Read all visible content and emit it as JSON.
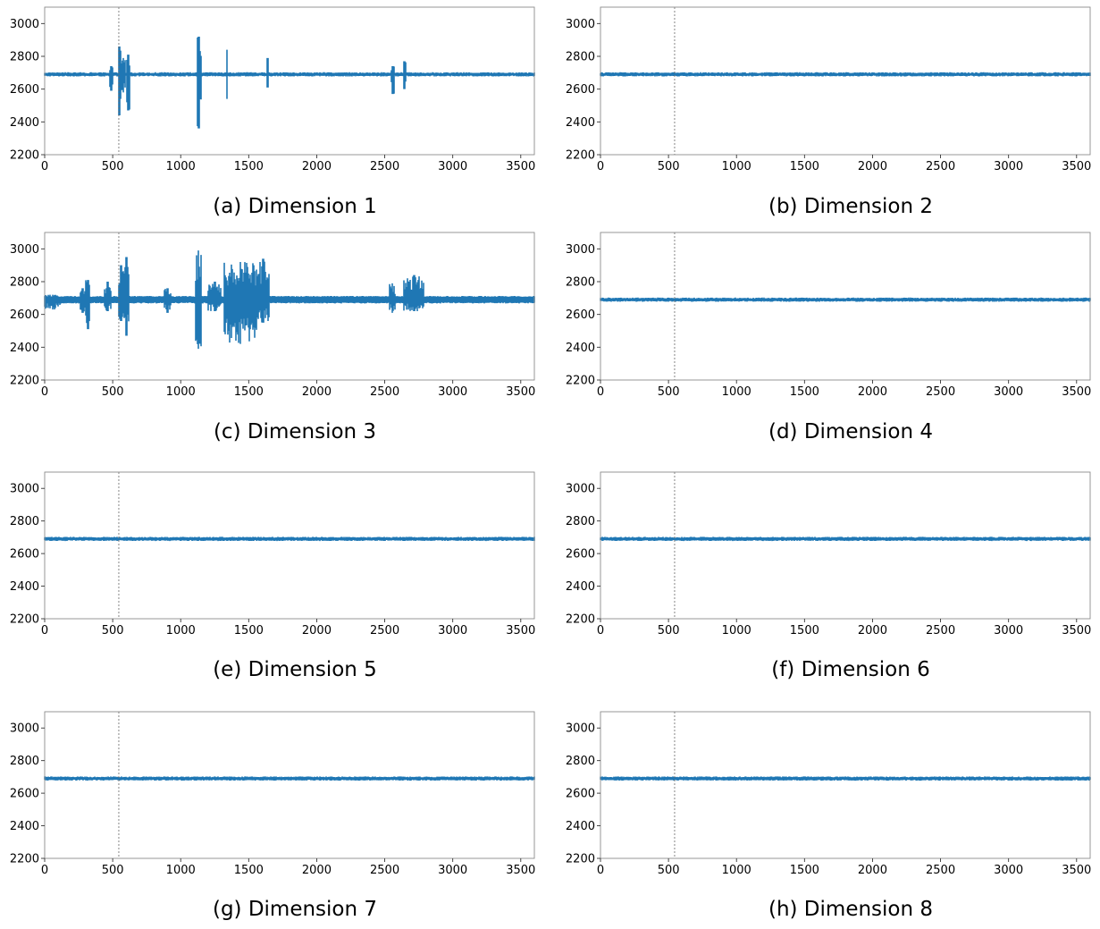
{
  "figure": {
    "chart_data": [
      {
        "type": "line",
        "caption": "(a) Dimension 1",
        "profile": "bursty_a",
        "xlim": [
          0,
          3600
        ],
        "ylim": [
          2200,
          3100
        ],
        "xticks": [
          0,
          500,
          1000,
          1500,
          2000,
          2500,
          3000,
          3500
        ],
        "yticks": [
          2200,
          2400,
          2600,
          2800,
          3000
        ],
        "baseline": 2690,
        "noise_amplitude": 10,
        "marker_x": 545,
        "series_color": "#1f77b4",
        "bursts": [
          {
            "x": [
              475,
              500
            ],
            "min": 2590,
            "max": 2740
          },
          {
            "x": [
              540,
              560
            ],
            "min": 2440,
            "max": 2860
          },
          {
            "x": [
              560,
              595
            ],
            "min": 2580,
            "max": 2790
          },
          {
            "x": [
              600,
              625
            ],
            "min": 2470,
            "max": 2810
          },
          {
            "x": [
              1120,
              1150
            ],
            "min": 2360,
            "max": 2920
          },
          {
            "x": [
              1335,
              1345
            ],
            "min": 2540,
            "max": 2840
          },
          {
            "x": [
              1635,
              1645
            ],
            "min": 2610,
            "max": 2790
          },
          {
            "x": [
              2545,
              2570
            ],
            "min": 2570,
            "max": 2740
          },
          {
            "x": [
              2635,
              2655
            ],
            "min": 2600,
            "max": 2770
          }
        ]
      },
      {
        "type": "line",
        "caption": "(b) Dimension 2",
        "profile": "flat",
        "xlim": [
          0,
          3600
        ],
        "ylim": [
          2200,
          3100
        ],
        "xticks": [
          0,
          500,
          1000,
          1500,
          2000,
          2500,
          3000,
          3500
        ],
        "yticks": [
          2200,
          2400,
          2600,
          2800,
          3000
        ],
        "baseline": 2690,
        "noise_amplitude": 10,
        "marker_x": 545,
        "series_color": "#1f77b4",
        "bursts": []
      },
      {
        "type": "line",
        "caption": "(c) Dimension 3",
        "profile": "bursty_c",
        "xlim": [
          0,
          3600
        ],
        "ylim": [
          2200,
          3100
        ],
        "xticks": [
          0,
          500,
          1000,
          1500,
          2000,
          2500,
          3000,
          3500
        ],
        "yticks": [
          2200,
          2400,
          2600,
          2800,
          3000
        ],
        "baseline": 2690,
        "noise_amplitude": 20,
        "marker_x": 545,
        "series_color": "#1f77b4",
        "bursts": [
          {
            "x": [
              0,
              120
            ],
            "min": 2630,
            "max": 2720
          },
          {
            "x": [
              260,
              300
            ],
            "min": 2610,
            "max": 2760
          },
          {
            "x": [
              300,
              335
            ],
            "min": 2510,
            "max": 2810
          },
          {
            "x": [
              440,
              490
            ],
            "min": 2620,
            "max": 2800
          },
          {
            "x": [
              545,
              580
            ],
            "min": 2560,
            "max": 2900
          },
          {
            "x": [
              580,
              620
            ],
            "min": 2470,
            "max": 2950
          },
          {
            "x": [
              880,
              930
            ],
            "min": 2610,
            "max": 2760
          },
          {
            "x": [
              1110,
              1150
            ],
            "min": 2390,
            "max": 2990
          },
          {
            "x": [
              1200,
              1300
            ],
            "min": 2620,
            "max": 2800
          },
          {
            "x": [
              1320,
              1560
            ],
            "min": 2420,
            "max": 2920
          },
          {
            "x": [
              1560,
              1650
            ],
            "min": 2550,
            "max": 2940
          },
          {
            "x": [
              2530,
              2580
            ],
            "min": 2610,
            "max": 2790
          },
          {
            "x": [
              2640,
              2790
            ],
            "min": 2620,
            "max": 2840
          }
        ]
      },
      {
        "type": "line",
        "caption": "(d) Dimension 4",
        "profile": "flat",
        "xlim": [
          0,
          3600
        ],
        "ylim": [
          2200,
          3100
        ],
        "xticks": [
          0,
          500,
          1000,
          1500,
          2000,
          2500,
          3000,
          3500
        ],
        "yticks": [
          2200,
          2400,
          2600,
          2800,
          3000
        ],
        "baseline": 2690,
        "noise_amplitude": 10,
        "marker_x": 545,
        "series_color": "#1f77b4",
        "bursts": []
      },
      {
        "type": "line",
        "caption": "(e) Dimension 5",
        "profile": "flat",
        "xlim": [
          0,
          3600
        ],
        "ylim": [
          2200,
          3100
        ],
        "xticks": [
          0,
          500,
          1000,
          1500,
          2000,
          2500,
          3000,
          3500
        ],
        "yticks": [
          2200,
          2400,
          2600,
          2800,
          3000
        ],
        "baseline": 2690,
        "noise_amplitude": 10,
        "marker_x": 545,
        "series_color": "#1f77b4",
        "bursts": []
      },
      {
        "type": "line",
        "caption": "(f) Dimension 6",
        "profile": "flat",
        "xlim": [
          0,
          3600
        ],
        "ylim": [
          2200,
          3100
        ],
        "xticks": [
          0,
          500,
          1000,
          1500,
          2000,
          2500,
          3000,
          3500
        ],
        "yticks": [
          2200,
          2400,
          2600,
          2800,
          3000
        ],
        "baseline": 2690,
        "noise_amplitude": 10,
        "marker_x": 545,
        "series_color": "#1f77b4",
        "bursts": []
      },
      {
        "type": "line",
        "caption": "(g) Dimension 7",
        "profile": "flat",
        "xlim": [
          0,
          3600
        ],
        "ylim": [
          2200,
          3100
        ],
        "xticks": [
          0,
          500,
          1000,
          1500,
          2000,
          2500,
          3000,
          3500
        ],
        "yticks": [
          2200,
          2400,
          2600,
          2800,
          3000
        ],
        "baseline": 2690,
        "noise_amplitude": 10,
        "marker_x": 545,
        "series_color": "#1f77b4",
        "bursts": []
      },
      {
        "type": "line",
        "caption": "(h) Dimension 8",
        "profile": "flat",
        "xlim": [
          0,
          3600
        ],
        "ylim": [
          2200,
          3100
        ],
        "xticks": [
          0,
          500,
          1000,
          1500,
          2000,
          2500,
          3000,
          3500
        ],
        "yticks": [
          2200,
          2400,
          2600,
          2800,
          3000
        ],
        "baseline": 2690,
        "noise_amplitude": 10,
        "marker_x": 545,
        "series_color": "#1f77b4",
        "bursts": []
      }
    ]
  }
}
